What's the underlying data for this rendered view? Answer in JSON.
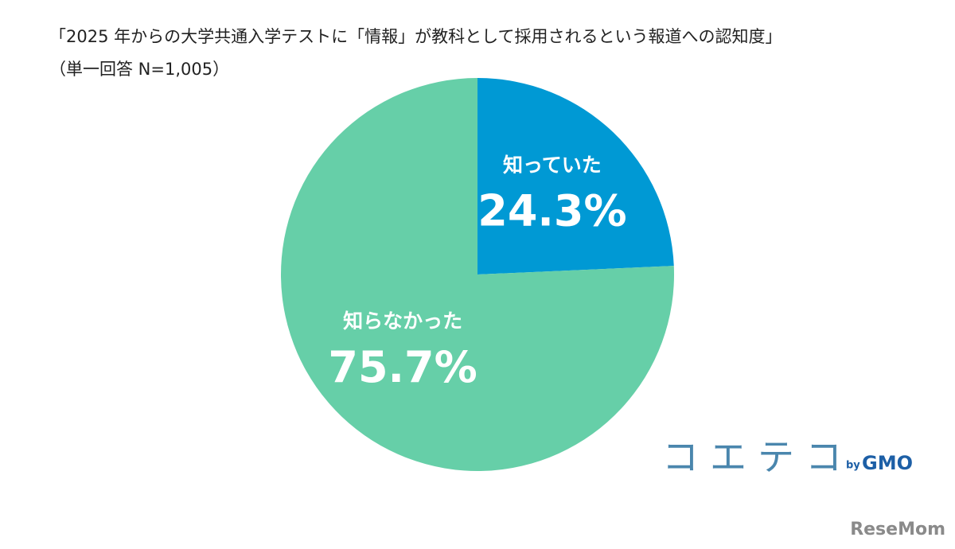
{
  "chart_data": {
    "type": "pie",
    "title": "「2025 年からの大学共通入学テストに「情報」が教科として採用されるという報道への認知度」",
    "subtitle": "（単一回答 N=1,005）",
    "categories": [
      "知っていた",
      "知らなかった"
    ],
    "values": [
      24.3,
      75.7
    ],
    "value_labels": [
      "24.3%",
      "75.7%"
    ],
    "colors": [
      "#0099d4",
      "#66cfa8"
    ]
  },
  "logo": {
    "brand": "コエテコ",
    "by": "by",
    "company": "GMO"
  },
  "watermark": "ReseMom"
}
